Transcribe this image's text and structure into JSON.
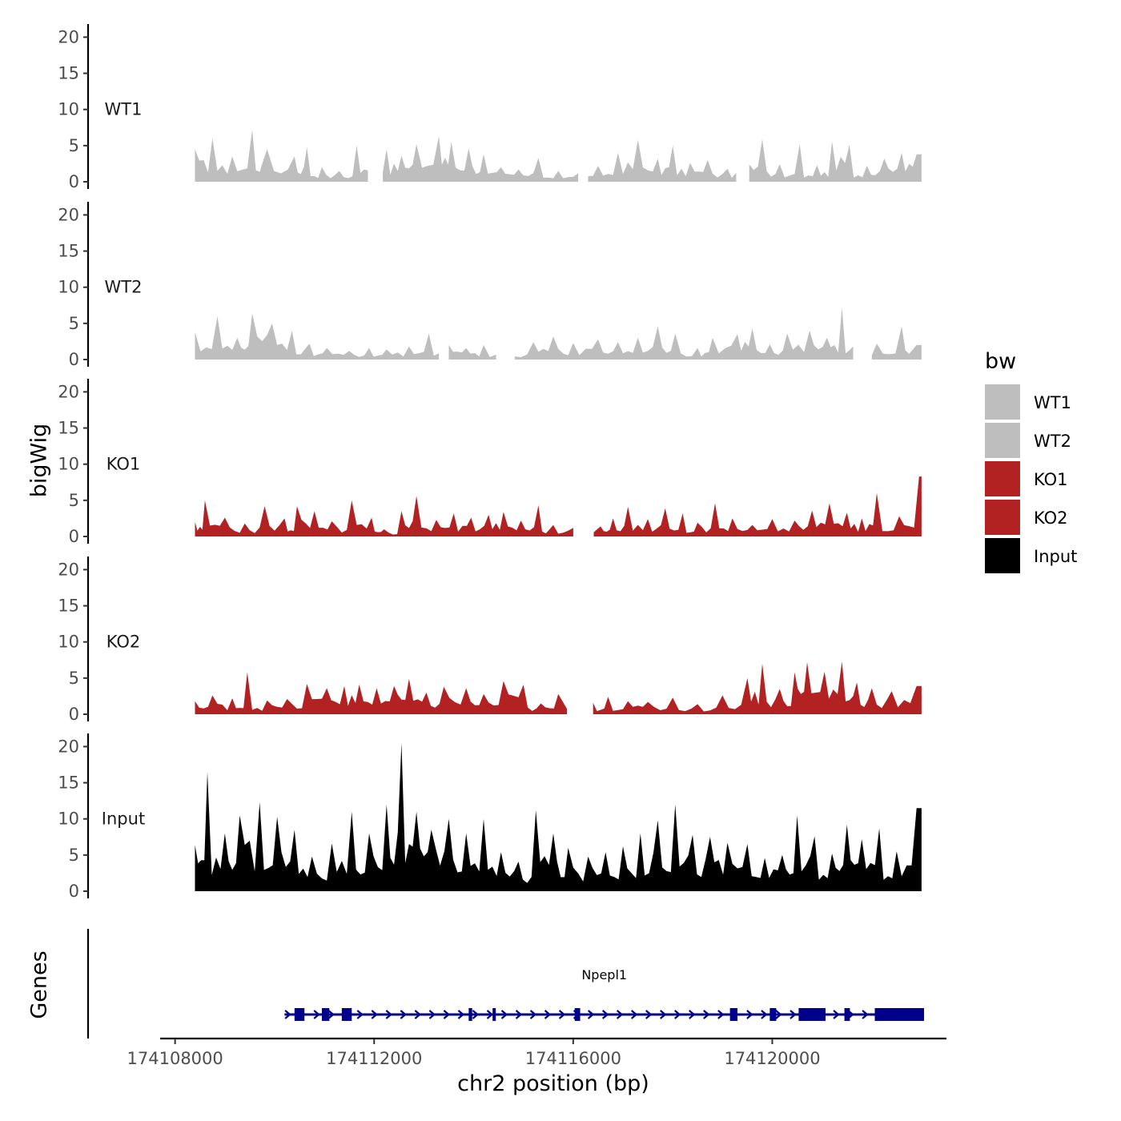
{
  "chart_data": {
    "type": "area",
    "title": "",
    "xlabel": "chr2 position (bp)",
    "ylabel": "bigWig",
    "genes_label": "Genes",
    "xlim": [
      174107700,
      174123500
    ],
    "x_ticks": [
      174108000,
      174112000,
      174116000,
      174120000
    ],
    "x_tick_labels": [
      "174108000",
      "174112000",
      "174116000",
      "174120000"
    ],
    "ylim": [
      0,
      21
    ],
    "y_ticks": [
      0,
      5,
      10,
      15,
      20
    ],
    "y_tick_labels": [
      "0",
      "5",
      "10",
      "15",
      "20"
    ],
    "data_range": [
      174108400,
      174123000
    ],
    "legend": {
      "title": "bw",
      "position": "right",
      "entries": [
        {
          "label": "WT1",
          "color": "#bebebe"
        },
        {
          "label": "WT2",
          "color": "#bebebe"
        },
        {
          "label": "KO1",
          "color": "#b22222"
        },
        {
          "label": "KO2",
          "color": "#b22222"
        },
        {
          "label": "Input",
          "color": "#000000"
        }
      ]
    },
    "series": [
      {
        "name": "WT1",
        "color": "#bebebe",
        "peaks": [
          [
            174108400,
            4.5
          ],
          [
            174108750,
            6
          ],
          [
            174109150,
            3.5
          ],
          [
            174109550,
            7.2
          ],
          [
            174109850,
            4.5
          ],
          [
            174110400,
            3.5
          ],
          [
            174110650,
            4.8
          ],
          [
            174110950,
            2
          ],
          [
            174111300,
            1.5
          ],
          [
            174111650,
            5
          ],
          [
            174111950,
            3
          ],
          [
            174112250,
            4.5
          ],
          [
            174112550,
            3.6
          ],
          [
            174112850,
            5.2
          ],
          [
            174113300,
            6.3
          ],
          [
            174113550,
            5.5
          ],
          [
            174113900,
            4.6
          ],
          [
            174114200,
            3.8
          ],
          [
            174114550,
            2
          ],
          [
            174114900,
            1.7
          ],
          [
            174115300,
            3.3
          ],
          [
            174115700,
            1.5
          ],
          [
            174116100,
            1.2
          ],
          [
            174116500,
            2.2
          ],
          [
            174116900,
            4
          ],
          [
            174117300,
            5.8
          ],
          [
            174117700,
            3.2
          ],
          [
            174118000,
            5
          ],
          [
            174118350,
            2.6
          ],
          [
            174118700,
            3
          ],
          [
            174119100,
            1.8
          ],
          [
            174119450,
            3.5
          ],
          [
            174119800,
            5.9
          ],
          [
            174120150,
            2.4
          ],
          [
            174120550,
            5.2
          ],
          [
            174120900,
            2.3
          ],
          [
            174121200,
            5.6
          ],
          [
            174121550,
            5.1
          ],
          [
            174121900,
            2.2
          ],
          [
            174122250,
            3.2
          ],
          [
            174122600,
            4
          ],
          [
            174122900,
            3.8
          ]
        ],
        "gaps": [
          [
            174111950,
            174112100
          ],
          [
            174116150,
            174116230
          ],
          [
            174119350,
            174119450
          ]
        ]
      },
      {
        "name": "WT2",
        "color": "#bebebe",
        "peaks": [
          [
            174108400,
            3.8
          ],
          [
            174108850,
            6
          ],
          [
            174109250,
            3
          ],
          [
            174109550,
            6.4
          ],
          [
            174109950,
            5
          ],
          [
            174110350,
            4
          ],
          [
            174110700,
            2.2
          ],
          [
            174111050,
            1.6
          ],
          [
            174111500,
            1.2
          ],
          [
            174111900,
            1.6
          ],
          [
            174112250,
            1.4
          ],
          [
            174112700,
            1.8
          ],
          [
            174113100,
            3.6
          ],
          [
            174113500,
            2
          ],
          [
            174113850,
            1.6
          ],
          [
            174114200,
            2
          ],
          [
            174114700,
            1
          ],
          [
            174115200,
            2.4
          ],
          [
            174115600,
            3.2
          ],
          [
            174116000,
            2.3
          ],
          [
            174116500,
            2.8
          ],
          [
            174116900,
            2.4
          ],
          [
            174117300,
            3
          ],
          [
            174117700,
            4.6
          ],
          [
            174118050,
            3.6
          ],
          [
            174118500,
            1.6
          ],
          [
            174118800,
            3
          ],
          [
            174119300,
            3.5
          ],
          [
            174119600,
            4.3
          ],
          [
            174119950,
            2.1
          ],
          [
            174120300,
            3.6
          ],
          [
            174120750,
            4
          ],
          [
            174121100,
            3
          ],
          [
            174121400,
            7.2
          ],
          [
            174121700,
            3
          ],
          [
            174122100,
            2.2
          ],
          [
            174122600,
            4.6
          ],
          [
            174122900,
            2
          ]
        ],
        "gaps": [
          [
            174113400,
            174113450
          ],
          [
            174114500,
            174114800
          ],
          [
            174121700,
            174121900
          ]
        ]
      },
      {
        "name": "KO1",
        "color": "#b22222",
        "peaks": [
          [
            174108400,
            2
          ],
          [
            174108600,
            5
          ],
          [
            174109000,
            2.6
          ],
          [
            174109400,
            1.8
          ],
          [
            174109800,
            4.2
          ],
          [
            174110200,
            2.5
          ],
          [
            174110450,
            4.2
          ],
          [
            174110800,
            3.5
          ],
          [
            174111150,
            2.1
          ],
          [
            174111550,
            5
          ],
          [
            174111950,
            2.6
          ],
          [
            174112200,
            1
          ],
          [
            174112550,
            3.5
          ],
          [
            174112850,
            5.6
          ],
          [
            174113250,
            2.3
          ],
          [
            174113600,
            3.2
          ],
          [
            174113950,
            2.6
          ],
          [
            174114300,
            3
          ],
          [
            174114600,
            3.4
          ],
          [
            174114950,
            2.2
          ],
          [
            174115300,
            4.3
          ],
          [
            174115600,
            1.6
          ],
          [
            174116000,
            1.2
          ],
          [
            174116550,
            1.4
          ],
          [
            174116800,
            2.5
          ],
          [
            174117100,
            4.1
          ],
          [
            174117500,
            2.4
          ],
          [
            174117850,
            3.9
          ],
          [
            174118200,
            3.2
          ],
          [
            174118500,
            1.9
          ],
          [
            174118850,
            4.6
          ],
          [
            174119200,
            2.5
          ],
          [
            174119600,
            1.6
          ],
          [
            174120000,
            2.4
          ],
          [
            174120450,
            2.2
          ],
          [
            174120800,
            3.6
          ],
          [
            174121150,
            4.6
          ],
          [
            174121500,
            3.3
          ],
          [
            174121800,
            2.5
          ],
          [
            174122100,
            6
          ],
          [
            174122550,
            2.8
          ],
          [
            174122950,
            8.3
          ]
        ],
        "gaps": [
          [
            174116050,
            174116300
          ]
        ]
      },
      {
        "name": "KO2",
        "color": "#b22222",
        "peaks": [
          [
            174108400,
            1.8
          ],
          [
            174108750,
            2.6
          ],
          [
            174109150,
            2.2
          ],
          [
            174109450,
            5.8
          ],
          [
            174109850,
            1.9
          ],
          [
            174110250,
            2.1
          ],
          [
            174110650,
            4.2
          ],
          [
            174111050,
            3.6
          ],
          [
            174111400,
            3.9
          ],
          [
            174111700,
            4.1
          ],
          [
            174112050,
            3.6
          ],
          [
            174112400,
            3.9
          ],
          [
            174112700,
            4.9
          ],
          [
            174113050,
            3
          ],
          [
            174113400,
            3.8
          ],
          [
            174113850,
            3.6
          ],
          [
            174114200,
            2.8
          ],
          [
            174114600,
            4.6
          ],
          [
            174115000,
            4.1
          ],
          [
            174115350,
            1.5
          ],
          [
            174115700,
            2.8
          ],
          [
            174116400,
            1.6
          ],
          [
            174116700,
            2.4
          ],
          [
            174117100,
            1.8
          ],
          [
            174117500,
            1.7
          ],
          [
            174118000,
            2.3
          ],
          [
            174118500,
            1.4
          ],
          [
            174119000,
            2.6
          ],
          [
            174119500,
            5
          ],
          [
            174119800,
            7
          ],
          [
            174120150,
            3.5
          ],
          [
            174120450,
            5.8
          ],
          [
            174120700,
            7.2
          ],
          [
            174121050,
            5.9
          ],
          [
            174121400,
            7.3
          ],
          [
            174121700,
            4.4
          ],
          [
            174122000,
            3.6
          ],
          [
            174122400,
            3.2
          ],
          [
            174122900,
            3.9
          ]
        ],
        "gaps": [
          [
            174116000,
            174116300
          ]
        ]
      },
      {
        "name": "Input",
        "color": "#000000",
        "peaks": [
          [
            174108400,
            6.4
          ],
          [
            174108650,
            16.5
          ],
          [
            174109000,
            8
          ],
          [
            174109300,
            10.5
          ],
          [
            174109700,
            12.3
          ],
          [
            174110050,
            10.3
          ],
          [
            174110400,
            8.5
          ],
          [
            174110750,
            4.8
          ],
          [
            174111150,
            6.6
          ],
          [
            174111550,
            11
          ],
          [
            174111900,
            8
          ],
          [
            174112250,
            12
          ],
          [
            174112550,
            20.5
          ],
          [
            174112850,
            11
          ],
          [
            174113150,
            8.5
          ],
          [
            174113500,
            10
          ],
          [
            174113850,
            8
          ],
          [
            174114200,
            10
          ],
          [
            174114550,
            5.4
          ],
          [
            174114900,
            4.1
          ],
          [
            174115250,
            11.2
          ],
          [
            174115600,
            8
          ],
          [
            174115900,
            6
          ],
          [
            174116300,
            4.8
          ],
          [
            174116650,
            5.4
          ],
          [
            174117000,
            6.2
          ],
          [
            174117350,
            8
          ],
          [
            174117700,
            9.8
          ],
          [
            174118050,
            12
          ],
          [
            174118400,
            7.8
          ],
          [
            174118750,
            7.5
          ],
          [
            174119100,
            6.7
          ],
          [
            174119500,
            6.5
          ],
          [
            174119850,
            4.6
          ],
          [
            174120200,
            5
          ],
          [
            174120500,
            10.5
          ],
          [
            174120850,
            7.6
          ],
          [
            174121200,
            5.2
          ],
          [
            174121500,
            9.2
          ],
          [
            174121800,
            7.2
          ],
          [
            174122150,
            8.7
          ],
          [
            174122500,
            5.5
          ],
          [
            174122900,
            11.5
          ]
        ],
        "gaps": []
      }
    ],
    "genes": [
      {
        "name": "Npepl1",
        "start": 174110200,
        "end": 174123050,
        "strand": "+",
        "color": "#00008b",
        "exons": [
          [
            174110400,
            174110600
          ],
          [
            174110950,
            174111100
          ],
          [
            174111350,
            174111550
          ],
          [
            174113900,
            174113970
          ],
          [
            174114380,
            174114440
          ],
          [
            174116030,
            174116140
          ],
          [
            174119150,
            174119300
          ],
          [
            174119950,
            174120080
          ],
          [
            174120530,
            174121070
          ],
          [
            174121450,
            174121560
          ],
          [
            174122060,
            174123050
          ]
        ]
      }
    ]
  }
}
